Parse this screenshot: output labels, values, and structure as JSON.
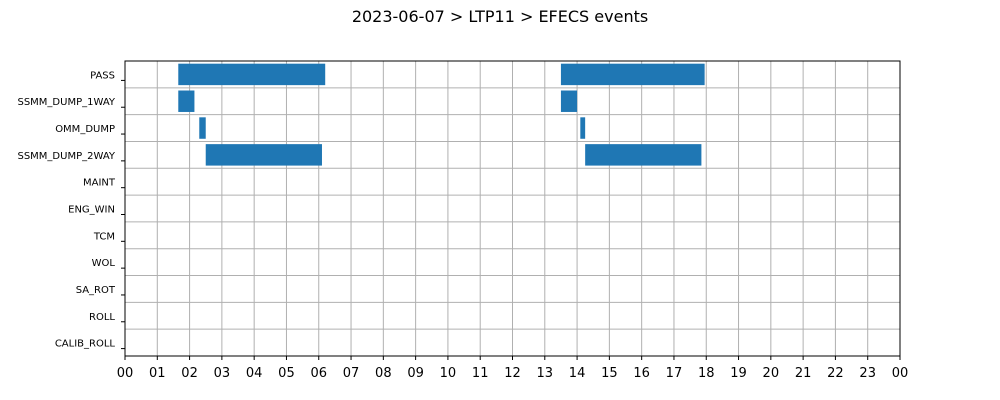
{
  "chart_data": {
    "type": "bar",
    "orientation": "horizontal-timeline",
    "title": "2023-06-07 > LTP11 > EFECS events",
    "xlabel": "",
    "ylabel": "",
    "xlim": [
      0,
      24
    ],
    "grid": true,
    "bar_color": "#1f77b4",
    "categories": [
      "PASS",
      "SSMM_DUMP_1WAY",
      "OMM_DUMP",
      "SSMM_DUMP_2WAY",
      "MAINT",
      "ENG_WIN",
      "TCM",
      "WOL",
      "SA_ROT",
      "ROLL",
      "CALIB_ROLL"
    ],
    "x_tick_labels": [
      "00",
      "01",
      "02",
      "03",
      "04",
      "05",
      "06",
      "07",
      "08",
      "09",
      "10",
      "11",
      "12",
      "13",
      "14",
      "15",
      "16",
      "17",
      "18",
      "19",
      "20",
      "21",
      "22",
      "23",
      "00"
    ],
    "events": [
      {
        "category": "PASS",
        "start": 1.65,
        "end": 6.2
      },
      {
        "category": "PASS",
        "start": 13.5,
        "end": 17.95
      },
      {
        "category": "SSMM_DUMP_1WAY",
        "start": 1.65,
        "end": 2.15
      },
      {
        "category": "SSMM_DUMP_1WAY",
        "start": 13.5,
        "end": 14.0
      },
      {
        "category": "OMM_DUMP",
        "start": 2.3,
        "end": 2.5
      },
      {
        "category": "OMM_DUMP",
        "start": 14.1,
        "end": 14.25
      },
      {
        "category": "SSMM_DUMP_2WAY",
        "start": 2.5,
        "end": 6.1
      },
      {
        "category": "SSMM_DUMP_2WAY",
        "start": 14.25,
        "end": 17.85
      }
    ]
  }
}
